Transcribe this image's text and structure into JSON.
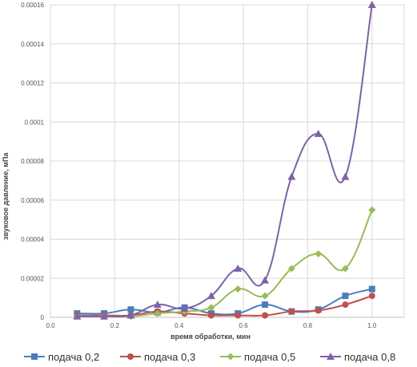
{
  "chart_data": {
    "type": "line",
    "title": "",
    "xlabel": "время обработки, мин",
    "ylabel": "звуковое давление, мПа",
    "xlim": [
      0,
      1.1
    ],
    "ylim": [
      0,
      0.00016
    ],
    "x_ticks": [
      "0.0",
      "0.2",
      "0.4",
      "0.6",
      "0.8",
      "1.0"
    ],
    "y_ticks": [
      "0",
      "0.00002",
      "0.00004",
      "0.00006",
      "0.00008",
      "0.0001",
      "0.00012",
      "0.00014",
      "0.00016"
    ],
    "grid": true,
    "legend_position": "bottom",
    "x": [
      0.083,
      0.167,
      0.25,
      0.333,
      0.417,
      0.5,
      0.583,
      0.667,
      0.75,
      0.833,
      0.917,
      1.0
    ],
    "series": [
      {
        "name": "подача 0,2",
        "color": "#4a7ebb",
        "marker": "square",
        "values": [
          2e-06,
          2e-06,
          4e-06,
          2.5e-06,
          5e-06,
          2e-06,
          2e-06,
          6.5e-06,
          3e-06,
          4e-06,
          1.1e-05,
          1.45e-05
        ]
      },
      {
        "name": "подача 0,3",
        "color": "#c0504d",
        "marker": "circle",
        "values": [
          1e-06,
          1e-06,
          1e-06,
          3e-06,
          2e-06,
          1e-06,
          1e-06,
          1e-06,
          3e-06,
          3.5e-06,
          6.5e-06,
          1.1e-05
        ]
      },
      {
        "name": "подача 0,5",
        "color": "#9bbb59",
        "marker": "diamond",
        "values": [
          5e-07,
          5e-07,
          5e-07,
          2e-06,
          3e-06,
          5e-06,
          1.45e-05,
          1.1e-05,
          2.5e-05,
          3.25e-05,
          2.5e-05,
          5.5e-05
        ]
      },
      {
        "name": "подача 0,8",
        "color": "#7e62a8",
        "marker": "triangle",
        "values": [
          5e-07,
          5e-07,
          1e-06,
          6.5e-06,
          4.5e-06,
          1.1e-05,
          2.5e-05,
          1.9e-05,
          7.2e-05,
          9.4e-05,
          7.2e-05,
          0.00016
        ]
      }
    ]
  }
}
